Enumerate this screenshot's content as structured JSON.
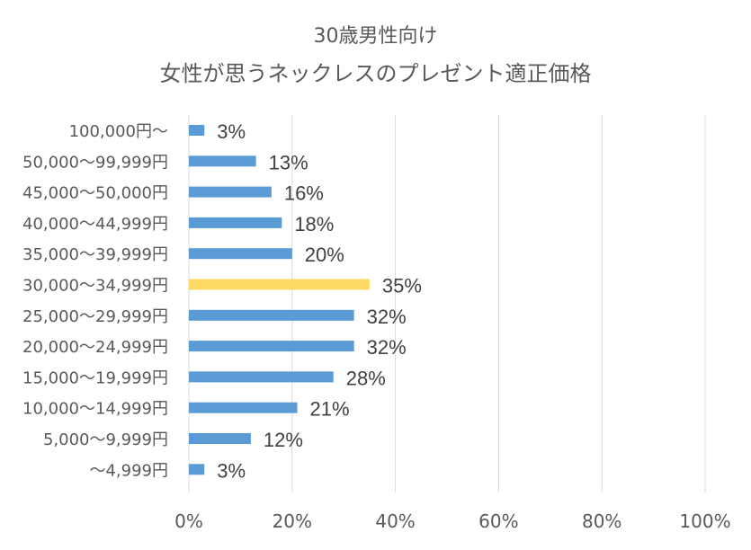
{
  "chart_data": {
    "type": "bar",
    "orientation": "horizontal",
    "title": "30歳男性向け",
    "subtitle": "女性が思うネックレスのプレゼント適正価格",
    "categories": [
      "100,000円～",
      "50,000～99,999円",
      "45,000～50,000円",
      "40,000～44,999円",
      "35,000～39,999円",
      "30,000～34,999円",
      "25,000～29,999円",
      "20,000～24,999円",
      "15,000～19,999円",
      "10,000～14,999円",
      "5,000～9,999円",
      "～4,999円"
    ],
    "values": [
      3,
      13,
      16,
      18,
      20,
      35,
      32,
      32,
      28,
      21,
      12,
      3
    ],
    "data_labels": [
      "3%",
      "13%",
      "16%",
      "18%",
      "20%",
      "35%",
      "32%",
      "32%",
      "28%",
      "21%",
      "12%",
      "3%"
    ],
    "highlight_index": 5,
    "xlim": [
      0,
      100
    ],
    "x_ticks": [
      0,
      20,
      40,
      60,
      80,
      100
    ],
    "x_tick_labels": [
      "0%",
      "20%",
      "40%",
      "60%",
      "80%",
      "100%"
    ],
    "grid": "vertical",
    "colors": {
      "bar": "#5b9bd5",
      "highlight": "#ffd966",
      "grid": "#d9d9d9"
    }
  }
}
